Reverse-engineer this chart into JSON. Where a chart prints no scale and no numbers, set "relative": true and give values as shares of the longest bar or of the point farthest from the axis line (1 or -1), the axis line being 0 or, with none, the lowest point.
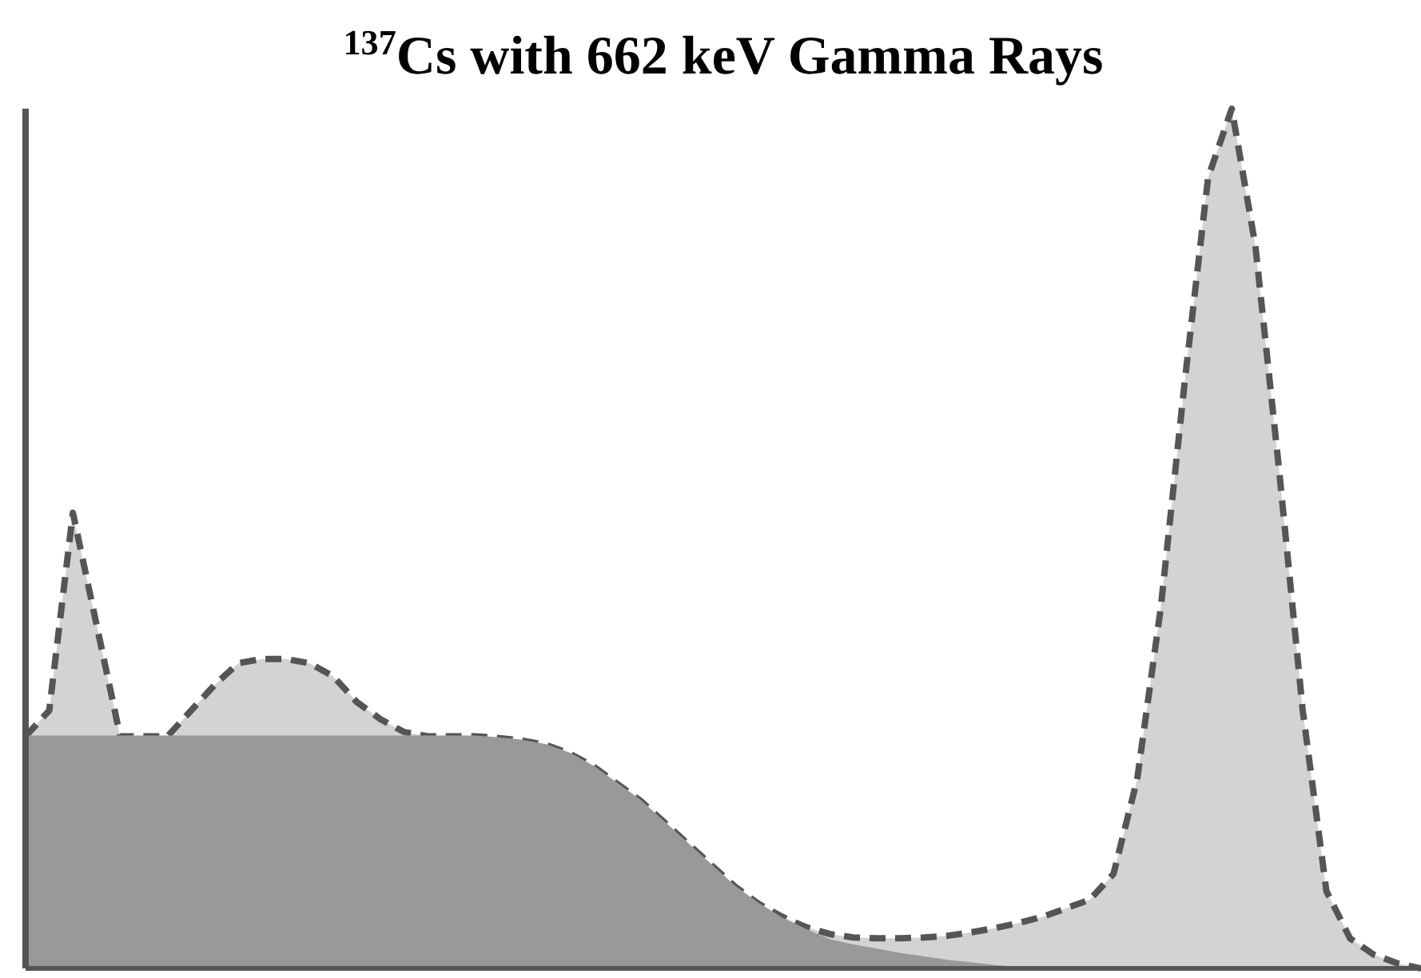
{
  "chart_data": {
    "type": "area",
    "title": "$^{137}$Cs with 662 keV Gamma Rays",
    "relative": true,
    "legend": false,
    "grid": false,
    "categories": [
      null,
      null,
      null,
      null,
      null,
      null,
      null,
      null,
      null,
      null,
      null,
      null,
      null,
      null,
      null,
      null,
      null,
      null,
      null,
      null,
      null,
      null,
      null,
      null,
      null,
      null,
      null,
      null,
      null,
      null,
      null,
      null,
      null,
      null,
      null,
      null,
      null,
      null,
      null,
      null,
      null,
      null,
      null,
      null,
      null,
      null,
      null,
      null,
      null,
      null,
      null,
      null,
      null,
      null,
      null,
      null,
      null,
      null,
      null,
      null
    ],
    "series": [
      {
        "color": "#d3d3d3",
        "line_style": "dashed",
        "values": [
          0.27,
          0.3,
          0.53,
          0.4,
          0.27,
          0.27,
          0.27,
          0.3,
          0.33,
          0.355,
          0.36,
          0.36,
          0.355,
          0.34,
          0.31,
          0.29,
          0.275,
          0.27,
          0.27,
          0.27,
          0.268,
          0.265,
          0.26,
          0.25,
          0.235,
          0.215,
          0.195,
          0.17,
          0.145,
          0.12,
          0.095,
          0.075,
          0.06,
          0.048,
          0.04,
          0.036,
          0.035,
          0.035,
          0.036,
          0.038,
          0.042,
          0.047,
          0.053,
          0.06,
          0.07,
          0.08,
          0.11,
          0.22,
          0.42,
          0.68,
          0.92,
          1.0,
          0.84,
          0.58,
          0.3,
          0.09,
          0.035,
          0.016,
          0.006,
          0
        ]
      },
      {
        "color": "#999999",
        "values": [
          0.27,
          0.27,
          0.27,
          0.27,
          0.27,
          0.27,
          0.27,
          0.27,
          0.27,
          0.27,
          0.27,
          0.27,
          0.27,
          0.27,
          0.27,
          0.27,
          0.27,
          0.27,
          0.27,
          0.27,
          0.268,
          0.265,
          0.26,
          0.25,
          0.235,
          0.215,
          0.195,
          0.17,
          0.145,
          0.12,
          0.095,
          0.075,
          0.058,
          0.045,
          0.033,
          0.027,
          0.022,
          0.017,
          0.013,
          0.009,
          0.006,
          0.003,
          0.001,
          0,
          0,
          0,
          0,
          0,
          0,
          0,
          0,
          0,
          0,
          0,
          0,
          0,
          0,
          0,
          0,
          0
        ]
      }
    ]
  }
}
